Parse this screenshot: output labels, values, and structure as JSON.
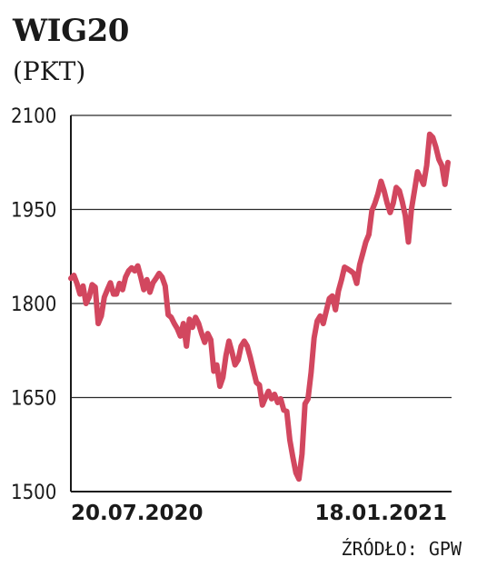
{
  "chart_data": {
    "type": "line",
    "title": "WIG20",
    "subtitle": "(PKT)",
    "source": "ŹRÓDŁO: GPW",
    "xlabel": "",
    "ylabel": "",
    "ylim": [
      1500,
      2100
    ],
    "yticks": [
      "2100",
      "1950",
      "1800",
      "1650",
      "1500"
    ],
    "ytick_values": [
      2100,
      1950,
      1800,
      1650,
      1500
    ],
    "xtick_labels": [
      "20.07.2020",
      "18.01.2021"
    ],
    "grid": true,
    "line_color": "#d2475f",
    "series": [
      {
        "values": [
          1840,
          1845,
          1832,
          1815,
          1828,
          1800,
          1810,
          1830,
          1826,
          1768,
          1780,
          1810,
          1822,
          1833,
          1815,
          1815,
          1832,
          1822,
          1842,
          1852,
          1857,
          1852,
          1860,
          1842,
          1822,
          1838,
          1818,
          1833,
          1840,
          1848,
          1842,
          1828,
          1782,
          1778,
          1768,
          1760,
          1748,
          1768,
          1732,
          1775,
          1762,
          1778,
          1768,
          1752,
          1738,
          1752,
          1742,
          1692,
          1702,
          1668,
          1682,
          1717,
          1740,
          1722,
          1702,
          1710,
          1732,
          1740,
          1732,
          1714,
          1694,
          1674,
          1670,
          1638,
          1650,
          1660,
          1648,
          1655,
          1642,
          1648,
          1630,
          1628,
          1582,
          1555,
          1530,
          1520,
          1560,
          1640,
          1648,
          1690,
          1745,
          1772,
          1780,
          1768,
          1788,
          1808,
          1812,
          1790,
          1820,
          1838,
          1858,
          1855,
          1852,
          1848,
          1832,
          1862,
          1880,
          1898,
          1910,
          1948,
          1960,
          1975,
          1995,
          1980,
          1960,
          1945,
          1960,
          1985,
          1980,
          1962,
          1940,
          1898,
          1950,
          1980,
          2010,
          2000,
          1990,
          2020,
          2070,
          2065,
          2050,
          2030,
          2020,
          1990,
          2025
        ]
      }
    ]
  }
}
